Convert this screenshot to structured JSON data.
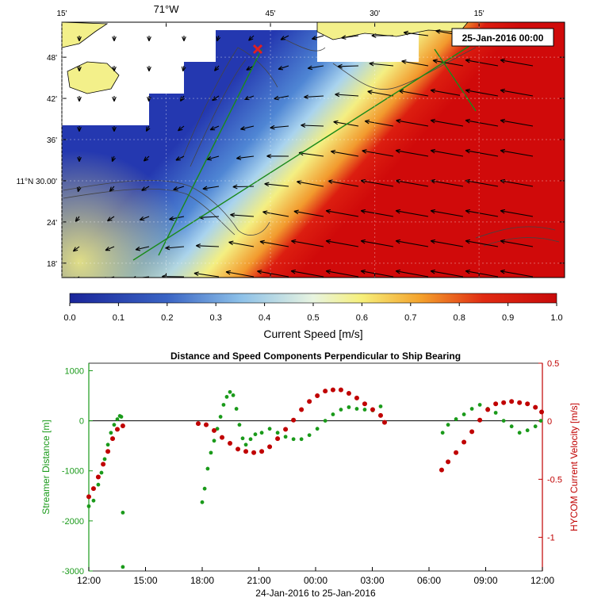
{
  "chart_data": [
    {
      "type": "map",
      "timestamp": "25-Jan-2016 00:00",
      "xlim": [
        -71.25,
        -70.045
      ],
      "xticks": [
        {
          "value": -71.25,
          "label": "15'"
        },
        {
          "value": -71,
          "label": "71°W"
        },
        {
          "value": -70.75,
          "label": "45'"
        },
        {
          "value": -70.5,
          "label": "30'"
        },
        {
          "value": -70.25,
          "label": "15'"
        }
      ],
      "ylim": [
        11.265,
        11.885
      ],
      "yticks": [
        {
          "value": 11.8,
          "label": "48'"
        },
        {
          "value": 11.7,
          "label": "42'"
        },
        {
          "value": 11.6,
          "label": "36'"
        },
        {
          "value": 11.5,
          "label": "11°N 30.00'"
        },
        {
          "value": 11.4,
          "label": "24'"
        },
        {
          "value": 11.3,
          "label": "18'"
        }
      ],
      "colorbar": {
        "label": "Current Speed [m/s]",
        "lim": [
          0,
          1
        ],
        "ticks": [
          {
            "value": 0,
            "label": "0.0"
          },
          {
            "value": 0.1,
            "label": "0.1"
          },
          {
            "value": 0.2,
            "label": "0.2"
          },
          {
            "value": 0.3,
            "label": "0.3"
          },
          {
            "value": 0.4,
            "label": "0.4"
          },
          {
            "value": 0.5,
            "label": "0.5"
          },
          {
            "value": 0.6,
            "label": "0.6"
          },
          {
            "value": 0.7,
            "label": "0.7"
          },
          {
            "value": 0.8,
            "label": "0.8"
          },
          {
            "value": 0.9,
            "label": "0.9"
          },
          {
            "value": 1,
            "label": "1.0"
          }
        ]
      }
    },
    {
      "type": "scatter",
      "title": "Distance and Speed Components Perpendicular to Ship Bearing",
      "xlabel": "24-Jan-2016 to 25-Jan-2016",
      "xlim": [
        0,
        24
      ],
      "xticks": [
        {
          "value": 0,
          "label": "12:00"
        },
        {
          "value": 3,
          "label": "15:00"
        },
        {
          "value": 6,
          "label": "18:00"
        },
        {
          "value": 9,
          "label": "21:00"
        },
        {
          "value": 12,
          "label": "00:00"
        },
        {
          "value": 15,
          "label": "03:00"
        },
        {
          "value": 18,
          "label": "06:00"
        },
        {
          "value": 21,
          "label": "09:00"
        },
        {
          "value": 24,
          "label": "12:00"
        }
      ],
      "ylim": [
        -3000,
        1150
      ],
      "yticks": [
        -3000,
        -2000,
        -1000,
        0,
        1000
      ],
      "y2lim": [
        -1.29,
        0.5
      ],
      "y2ticks": [
        -1,
        -0.5,
        0,
        0.5
      ],
      "series": [
        {
          "name": "Streamer Distance [m]",
          "color": "#1a9a1a",
          "x": [
            0,
            0.25,
            0.5,
            0.67,
            0.84,
            1.01,
            1.17,
            1.34,
            1.51,
            1.64,
            1.72,
            1.8,
            1.8,
            6.0,
            6.13,
            6.29,
            6.46,
            6.63,
            6.8,
            6.97,
            7.13,
            7.3,
            7.47,
            7.64,
            7.81,
            7.97,
            8.14,
            8.31,
            8.56,
            8.81,
            9.15,
            9.57,
            9.99,
            10.41,
            10.83,
            11.25,
            11.67,
            12.09,
            12.51,
            12.92,
            13.34,
            13.76,
            14.18,
            14.6,
            15.02,
            15.44,
            18.72,
            19.01,
            19.43,
            19.85,
            20.27,
            20.69,
            21.11,
            21.53,
            21.95,
            22.37,
            22.79,
            23.21,
            23.63,
            23.92
          ],
          "values": [
            -1707,
            -1595,
            -1276,
            -1037,
            -766,
            -478,
            -240,
            -80,
            30,
            96,
            80,
            -1834,
            -2919,
            -1627,
            -1356,
            -957,
            -638,
            -399,
            -159,
            80,
            319,
            478,
            574,
            510,
            239,
            -80,
            -351,
            -478,
            -367,
            -271,
            -239,
            -160,
            -239,
            -319,
            -367,
            -367,
            -287,
            -160,
            0,
            128,
            223,
            271,
            239,
            223,
            207,
            287,
            -239,
            -80,
            32,
            128,
            239,
            319,
            239,
            160,
            0,
            -112,
            -239,
            -191,
            -112,
            0
          ]
        },
        {
          "name": "HYCOM Current Velocity [m/s]",
          "color": "#c00000",
          "axis": "y2",
          "x": [
            0,
            0.25,
            0.5,
            0.76,
            1.01,
            1.26,
            1.51,
            1.8,
            5.79,
            6.21,
            6.63,
            7.05,
            7.47,
            7.89,
            8.31,
            8.73,
            9.15,
            9.57,
            9.99,
            10.41,
            10.83,
            11.25,
            11.67,
            12.09,
            12.51,
            12.92,
            13.34,
            13.76,
            14.18,
            14.6,
            15.02,
            15.44,
            15.65,
            18.67,
            19.01,
            19.43,
            19.85,
            20.27,
            20.69,
            21.11,
            21.53,
            21.95,
            22.37,
            22.79,
            23.21,
            23.63,
            23.96
          ],
          "values": [
            -0.65,
            -0.58,
            -0.48,
            -0.37,
            -0.26,
            -0.15,
            -0.07,
            -0.04,
            -0.02,
            -0.03,
            -0.08,
            -0.14,
            -0.19,
            -0.24,
            -0.26,
            -0.27,
            -0.26,
            -0.22,
            -0.15,
            -0.07,
            0.01,
            0.1,
            0.17,
            0.22,
            0.26,
            0.27,
            0.27,
            0.24,
            0.2,
            0.15,
            0.1,
            0.05,
            -0.01,
            -0.42,
            -0.35,
            -0.27,
            -0.18,
            -0.09,
            0.01,
            0.1,
            0.15,
            0.16,
            0.17,
            0.16,
            0.15,
            0.12,
            0.08
          ]
        }
      ]
    }
  ]
}
